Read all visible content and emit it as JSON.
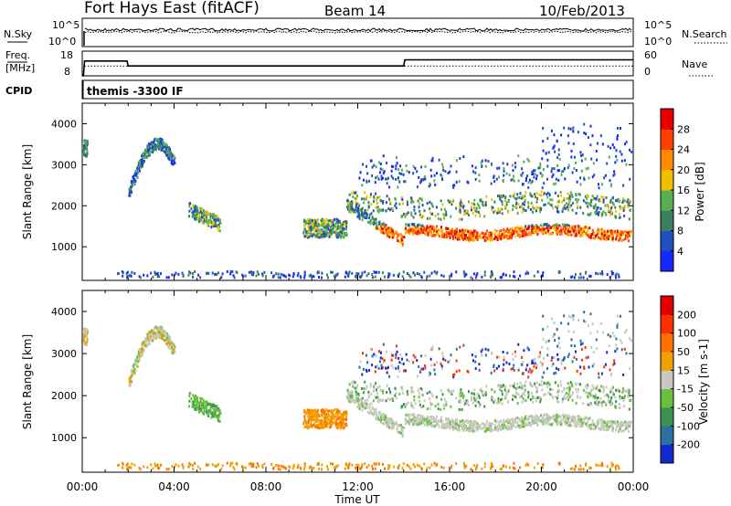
{
  "header": {
    "station": "Fort Hays East (fitACF)",
    "beam": "Beam 14",
    "date": "10/Feb/2013"
  },
  "top_panel": {
    "left_label": "N.Sky",
    "left_ticks": [
      "10^5",
      "10^0"
    ],
    "right_ticks": [
      "10^5",
      "10^0"
    ],
    "right_label": "N.Search"
  },
  "freq_panel": {
    "left_label_1": "Freq.",
    "left_label_2": "[MHz]",
    "left_ticks": [
      "18",
      "8"
    ],
    "right_ticks": [
      "60",
      "0"
    ],
    "right_label": "Nave",
    "cpid_label": "CPID",
    "cpid_text": "themis -3300 IF"
  },
  "chart_data": [
    {
      "type": "line",
      "name": "frequency",
      "x": [
        0,
        0.05,
        0.1,
        1.95,
        2.0,
        14.0,
        14.05,
        24.0
      ],
      "values": [
        8,
        8,
        14,
        14,
        12,
        12,
        14.5,
        14.5
      ],
      "ylim": [
        8,
        18
      ],
      "xlim": [
        0,
        24
      ]
    },
    {
      "type": "line",
      "name": "nave",
      "x": [
        0.1,
        2.0,
        2.0,
        24.0
      ],
      "values": [
        24,
        24,
        24,
        24
      ],
      "ylim": [
        0,
        60
      ],
      "xlim": [
        0,
        24
      ]
    },
    {
      "type": "heatmap",
      "name": "power",
      "ylabel": "Slant Range [km]",
      "ylim": [
        180,
        4500
      ],
      "xlim": [
        0,
        24
      ],
      "yticks": [
        "1000",
        "2000",
        "3000",
        "4000"
      ],
      "colorbar_label": "Power [dB]",
      "colorbar_ticks": [
        "4",
        "8",
        "12",
        "16",
        "20",
        "24",
        "28"
      ],
      "colorbar_colors": [
        "#1428ff",
        "#2050c0",
        "#3a8060",
        "#58b050",
        "#f0c000",
        "#ff8c00",
        "#ff4000",
        "#e80000"
      ]
    },
    {
      "type": "heatmap",
      "name": "velocity",
      "ylabel": "Slant Range [km]",
      "ylim": [
        180,
        4500
      ],
      "xlim": [
        0,
        24
      ],
      "yticks": [
        "1000",
        "2000",
        "3000",
        "4000"
      ],
      "colorbar_label": "Velocity [m s-1]",
      "colorbar_ticks": [
        "200",
        "100",
        "50",
        "15",
        "-15",
        "-50",
        "-100",
        "-200"
      ],
      "colorbar_colors": [
        "#1428d0",
        "#2c70a0",
        "#3c9050",
        "#68c040",
        "#c8c8c0",
        "#f0a000",
        "#ff7000",
        "#ff3000",
        "#e00000"
      ]
    }
  ],
  "xaxis": {
    "ticks": [
      "00:00",
      "04:00",
      "08:00",
      "12:00",
      "16:00",
      "20:00",
      "00:00"
    ],
    "label": "Time UT"
  }
}
